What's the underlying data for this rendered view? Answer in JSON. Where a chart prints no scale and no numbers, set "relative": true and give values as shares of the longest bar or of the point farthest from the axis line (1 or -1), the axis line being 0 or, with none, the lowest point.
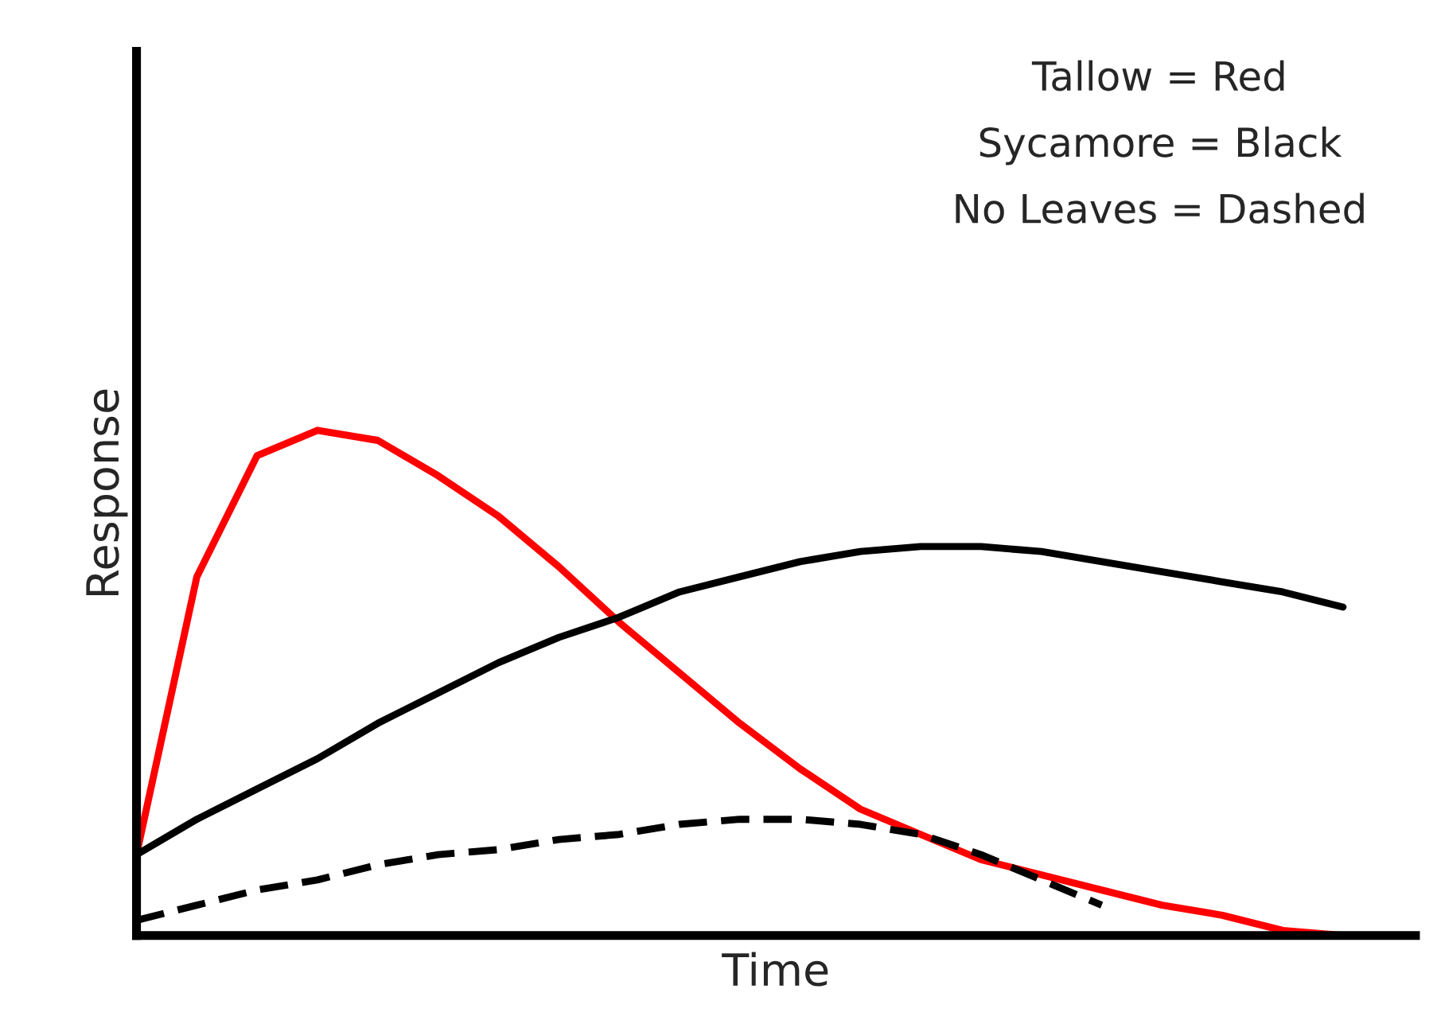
{
  "chart_data": {
    "type": "line",
    "relative": true,
    "xlabel": "Time",
    "ylabel": "Response",
    "annotations": [
      "Tallow = Red",
      "Sycamore = Black",
      "No Leaves = Dashed"
    ],
    "categories": [
      null,
      null,
      null,
      null,
      null,
      null,
      null,
      null,
      null,
      null,
      null,
      null,
      null,
      null,
      null,
      null,
      null,
      null,
      null,
      null,
      null
    ],
    "series": [
      {
        "color": "#ff0000",
        "line_style": "solid",
        "values": [
          0.16,
          0.71,
          0.95,
          1.0,
          0.98,
          0.91,
          0.83,
          0.73,
          0.62,
          0.52,
          0.42,
          0.33,
          0.25,
          0.2,
          0.15,
          0.12,
          0.09,
          0.06,
          0.04,
          0.01,
          0.0
        ]
      },
      {
        "color": "#000000",
        "line_style": "solid",
        "values": [
          0.16,
          0.23,
          0.29,
          0.35,
          0.42,
          0.48,
          0.54,
          0.59,
          0.63,
          0.68,
          0.71,
          0.74,
          0.76,
          0.77,
          0.77,
          0.76,
          0.74,
          0.72,
          0.7,
          0.68,
          0.65
        ]
      },
      {
        "color": "#000000",
        "line_style": "dashed",
        "values": [
          0.03,
          0.06,
          0.09,
          0.11,
          0.14,
          0.16,
          0.17,
          0.19,
          0.2,
          0.22,
          0.23,
          0.23,
          0.22,
          0.2,
          0.16,
          0.11,
          0.06,
          null,
          null,
          null,
          null
        ]
      }
    ],
    "grid": false,
    "legend": false,
    "marker": "none"
  }
}
